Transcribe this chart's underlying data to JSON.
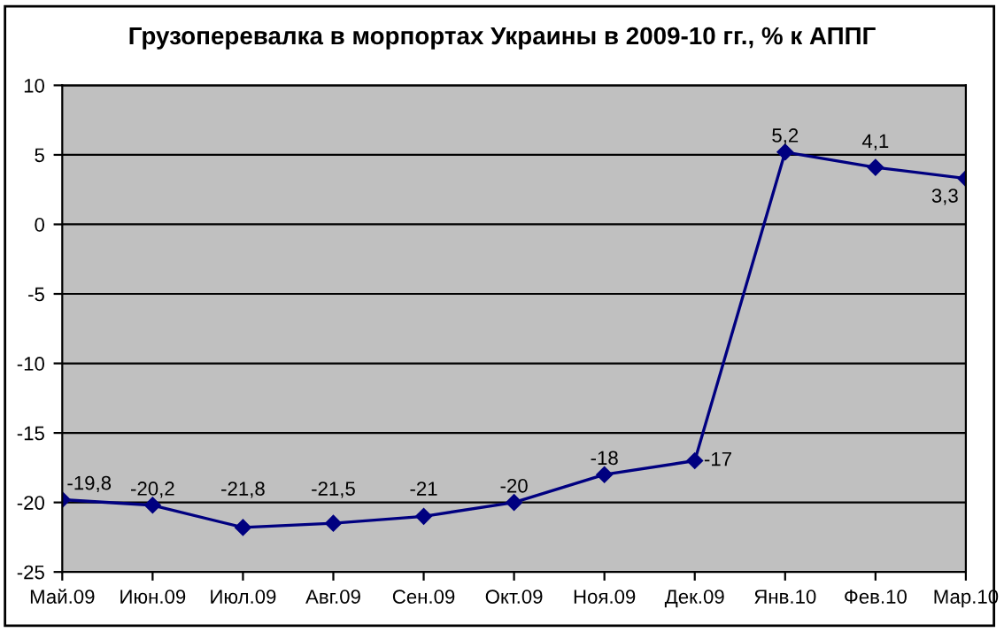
{
  "chart_data": {
    "type": "line",
    "title": "Грузоперевалка в морпортах Украины в 2009-10 гг., % к АППГ",
    "categories": [
      "Май.09",
      "Июн.09",
      "Июл.09",
      "Авг.09",
      "Сен.09",
      "Окт.09",
      "Ноя.09",
      "Дек.09",
      "Янв.10",
      "Фев.10",
      "Мар.10"
    ],
    "series": [
      {
        "color": "#000080",
        "values": [
          -19.8,
          -20.2,
          -21.8,
          -21.5,
          -21,
          -20,
          -18,
          -17,
          5.2,
          4.1,
          3.3
        ],
        "value_labels": [
          "-19,8",
          "-20,2",
          "-21,8",
          "-21,5",
          "-21",
          "-20",
          "-18",
          "-17",
          "5,2",
          "4,1",
          "3,3"
        ]
      }
    ],
    "ylim": [
      -25,
      10
    ],
    "yticks": [
      -25,
      -20,
      -15,
      -10,
      -5,
      0,
      5,
      10
    ],
    "grid": "y",
    "marker": "diamond",
    "line_style": "solid",
    "legend": false
  }
}
